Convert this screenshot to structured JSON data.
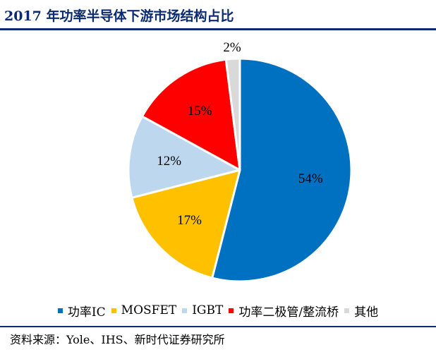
{
  "title": "2017 年功率半导体下游市场结构占比",
  "source": "资料来源：Yole、IHS、新时代证券研究所",
  "chart_data": {
    "type": "pie",
    "title": "2017 年功率半导体下游市场结构占比",
    "start_angle_deg": 0,
    "direction": "clockwise",
    "legend_position": "bottom",
    "slices": [
      {
        "name": "功率IC",
        "value": 54,
        "label": "54%",
        "color": "#0070c0"
      },
      {
        "name": "MOSFET",
        "value": 17,
        "label": "17%",
        "color": "#ffc000"
      },
      {
        "name": "IGBT",
        "value": 12,
        "label": "12%",
        "color": "#bdd7ee"
      },
      {
        "name": "功率二极管/整流桥",
        "value": 15,
        "label": "15%",
        "color": "#ff0000"
      },
      {
        "name": "其他",
        "value": 2,
        "label": "2%",
        "color": "#d9d9d9"
      }
    ]
  }
}
